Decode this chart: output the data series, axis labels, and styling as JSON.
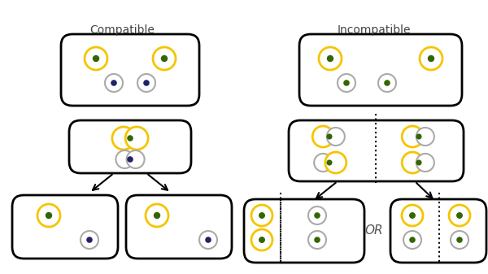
{
  "title_compatible": "Compatible",
  "title_incompatible": "Incompatible",
  "or_text": "OR",
  "yc": "#F5C500",
  "gc": "#AAAAAA",
  "dot_green": "#336600",
  "dot_blue": "#222266",
  "bg": "#FFFFFF"
}
